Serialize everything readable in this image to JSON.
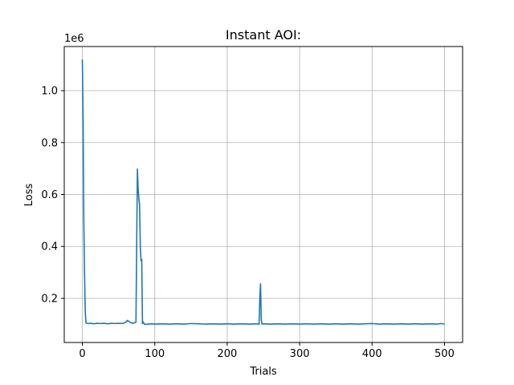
{
  "chart_data": {
    "type": "line",
    "title": "Instant AOI:",
    "xlabel": "Trials",
    "ylabel": "Loss",
    "y_offset_label": "1e6",
    "xlim": [
      -25,
      525
    ],
    "ylim": [
      30000,
      1170000
    ],
    "x_ticks": [
      0,
      100,
      200,
      300,
      400,
      500
    ],
    "x_tick_labels": [
      "0",
      "100",
      "200",
      "300",
      "400",
      "500"
    ],
    "y_ticks": [
      200000,
      400000,
      600000,
      800000,
      1000000
    ],
    "y_tick_labels": [
      "0.2",
      "0.4",
      "0.6",
      "0.8",
      "1.0"
    ],
    "grid": true,
    "series": [
      {
        "color": "#1f77b4",
        "points": [
          [
            0,
            1120000
          ],
          [
            1,
            900000
          ],
          [
            2,
            500000
          ],
          [
            3,
            300000
          ],
          [
            4,
            150000
          ],
          [
            5,
            105000
          ],
          [
            8,
            103000
          ],
          [
            12,
            104000
          ],
          [
            16,
            102000
          ],
          [
            20,
            104000
          ],
          [
            25,
            103000
          ],
          [
            30,
            104000
          ],
          [
            35,
            102000
          ],
          [
            40,
            104000
          ],
          [
            45,
            103000
          ],
          [
            50,
            104000
          ],
          [
            55,
            103000
          ],
          [
            60,
            108000
          ],
          [
            62,
            115000
          ],
          [
            64,
            112000
          ],
          [
            66,
            107000
          ],
          [
            70,
            104000
          ],
          [
            74,
            108000
          ],
          [
            75,
            400000
          ],
          [
            76,
            698000
          ],
          [
            77,
            620000
          ],
          [
            78,
            585000
          ],
          [
            79,
            560000
          ],
          [
            80,
            400000
          ],
          [
            81,
            345000
          ],
          [
            82,
            350000
          ],
          [
            83,
            103000
          ],
          [
            84,
            110000
          ],
          [
            85,
            103000
          ],
          [
            86,
            100000
          ],
          [
            90,
            101000
          ],
          [
            95,
            102000
          ],
          [
            100,
            101000
          ],
          [
            110,
            102000
          ],
          [
            120,
            101000
          ],
          [
            130,
            102000
          ],
          [
            140,
            101000
          ],
          [
            150,
            103000
          ],
          [
            160,
            102000
          ],
          [
            170,
            101000
          ],
          [
            180,
            102000
          ],
          [
            190,
            101000
          ],
          [
            200,
            102000
          ],
          [
            210,
            101000
          ],
          [
            220,
            102000
          ],
          [
            230,
            101000
          ],
          [
            240,
            102000
          ],
          [
            244,
            101000
          ],
          [
            245,
            200000
          ],
          [
            246,
            256000
          ],
          [
            247,
            120000
          ],
          [
            248,
            101000
          ],
          [
            250,
            102000
          ],
          [
            260,
            101000
          ],
          [
            270,
            102000
          ],
          [
            280,
            101000
          ],
          [
            290,
            102000
          ],
          [
            300,
            101000
          ],
          [
            310,
            102000
          ],
          [
            320,
            101000
          ],
          [
            330,
            102000
          ],
          [
            340,
            101000
          ],
          [
            350,
            102000
          ],
          [
            360,
            101000
          ],
          [
            370,
            102000
          ],
          [
            380,
            101000
          ],
          [
            390,
            102000
          ],
          [
            400,
            103000
          ],
          [
            410,
            101000
          ],
          [
            420,
            102000
          ],
          [
            430,
            101000
          ],
          [
            440,
            102000
          ],
          [
            450,
            101000
          ],
          [
            460,
            102000
          ],
          [
            470,
            101000
          ],
          [
            480,
            102000
          ],
          [
            490,
            101000
          ],
          [
            495,
            103000
          ],
          [
            500,
            101000
          ]
        ]
      }
    ]
  }
}
